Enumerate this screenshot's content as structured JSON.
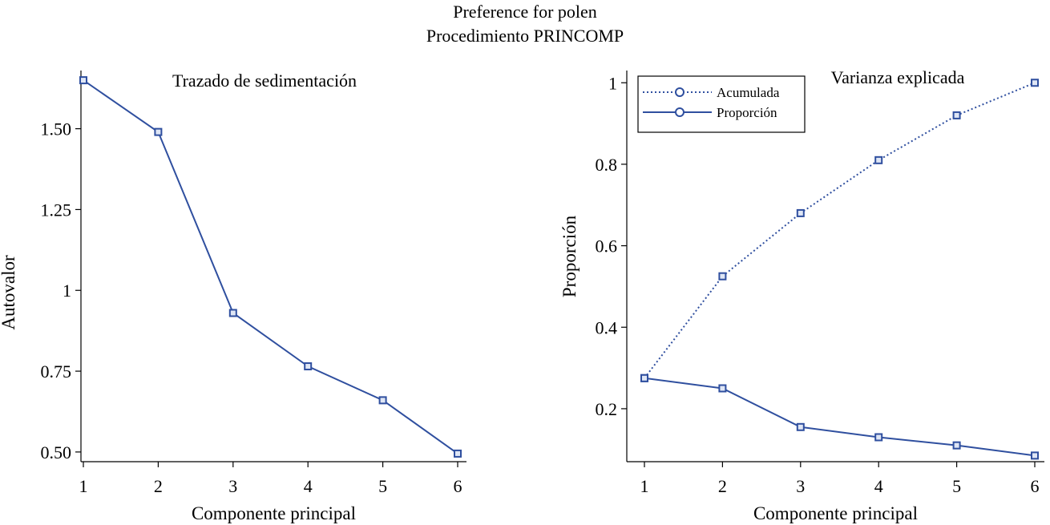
{
  "title": "Preference for polen",
  "subtitle": "Procedimiento PRINCOMP",
  "colors": {
    "series": "#2f4f9f",
    "marker": "#2f4f9f",
    "axis": "#000000"
  },
  "chart_data": [
    {
      "type": "line",
      "title": "Trazado de sedimentación",
      "xlabel": "Componente principal",
      "ylabel": "Autovalor",
      "x": [
        1,
        2,
        3,
        4,
        5,
        6
      ],
      "xticks": [
        "1",
        "2",
        "3",
        "4",
        "5",
        "6"
      ],
      "yticks": [
        "0.50",
        "0.75",
        "1",
        "1.25",
        "1.50"
      ],
      "ytick_values": [
        0.5,
        0.75,
        1,
        1.25,
        1.5
      ],
      "ylim": [
        0.47,
        1.68
      ],
      "series": [
        {
          "name": "Autovalor",
          "values": [
            1.65,
            1.49,
            0.93,
            0.765,
            0.66,
            0.495
          ],
          "style": "solid"
        }
      ]
    },
    {
      "type": "line",
      "title": "Varianza explicada",
      "xlabel": "Componente principal",
      "ylabel": "Proporción",
      "x": [
        1,
        2,
        3,
        4,
        5,
        6
      ],
      "xticks": [
        "1",
        "2",
        "3",
        "4",
        "5",
        "6"
      ],
      "yticks": [
        "0.2",
        "0.4",
        "0.6",
        "0.8",
        "1"
      ],
      "ytick_values": [
        0.2,
        0.4,
        0.6,
        0.8,
        1.0
      ],
      "ylim": [
        0.07,
        1.03
      ],
      "legend_position": "top-left",
      "series": [
        {
          "name": "Acumulada",
          "values": [
            0.275,
            0.525,
            0.68,
            0.81,
            0.92,
            1.0
          ],
          "style": "dotted"
        },
        {
          "name": "Proporción",
          "values": [
            0.275,
            0.25,
            0.155,
            0.13,
            0.11,
            0.085
          ],
          "style": "solid"
        }
      ]
    }
  ]
}
